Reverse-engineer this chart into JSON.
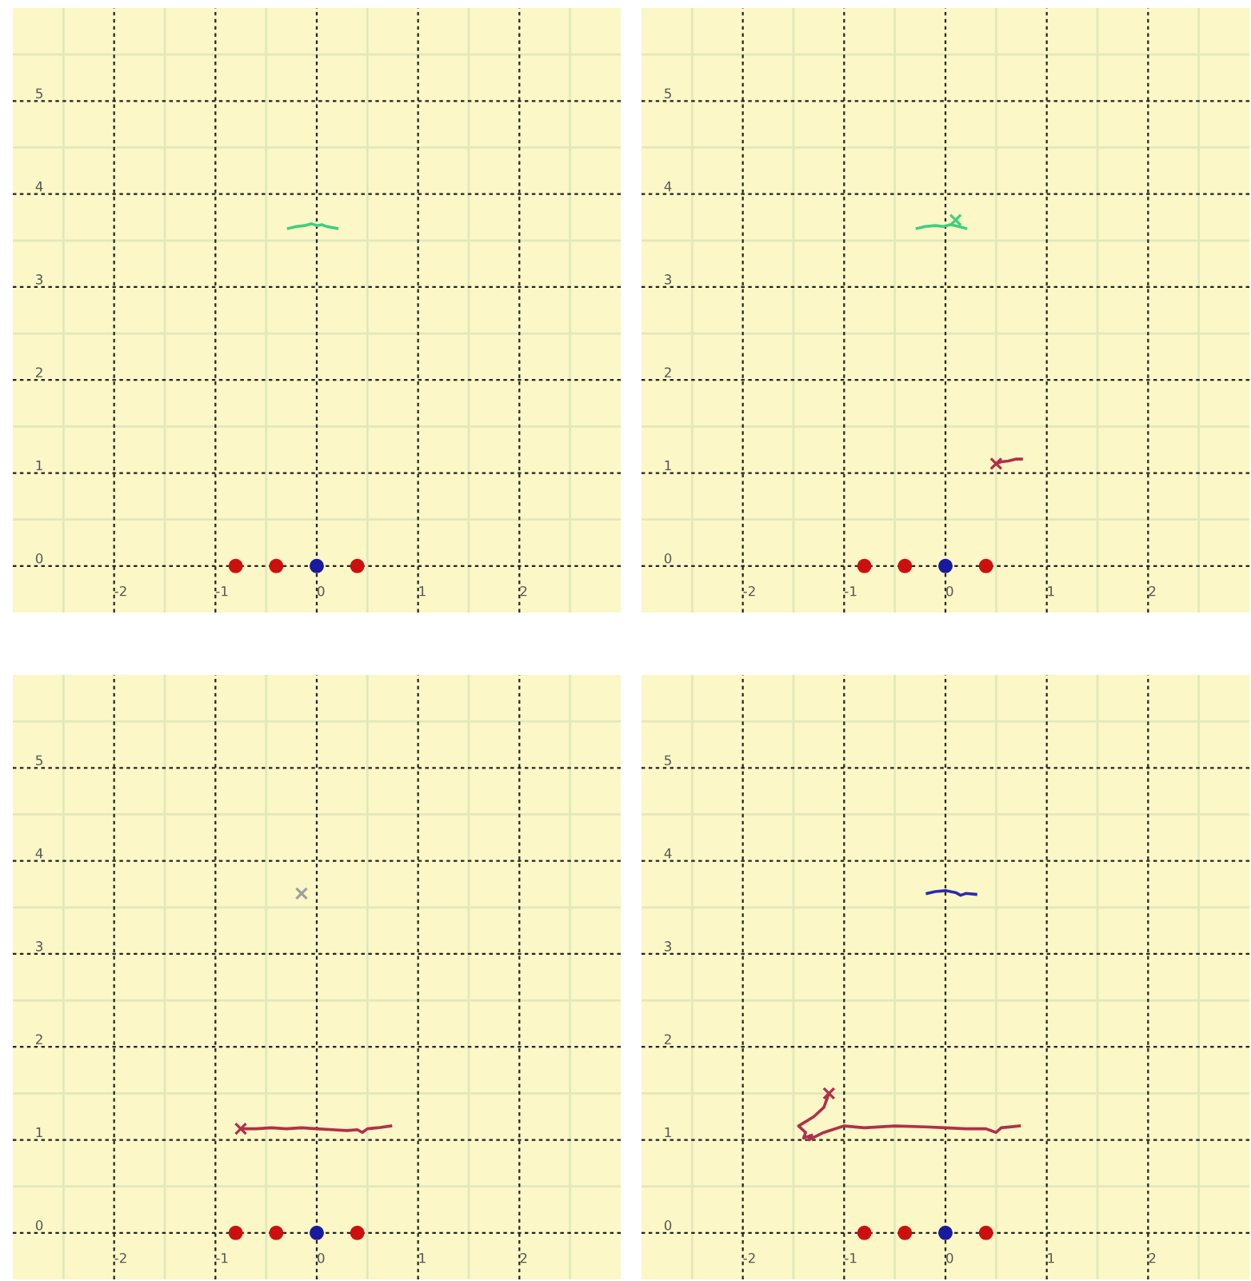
{
  "chart_data": [
    {
      "type": "scatter",
      "xlim": [
        -3,
        3
      ],
      "ylim": [
        -0.5,
        6
      ],
      "grid": true,
      "xticks": [
        {
          "value": -2.5,
          "label": null
        },
        -2,
        {
          "value": -1.5,
          "label": null
        },
        -1,
        {
          "value": -0.5,
          "label": null
        },
        0,
        {
          "value": 0.5,
          "label": null
        },
        1,
        {
          "value": 1.5,
          "label": null
        },
        2,
        {
          "value": 2.5,
          "label": null
        }
      ],
      "yticks": [
        0,
        {
          "value": 0.5,
          "label": null
        },
        1,
        {
          "value": 1.5,
          "label": null
        },
        2,
        {
          "value": 2.5,
          "label": null
        },
        3,
        {
          "value": 3.5,
          "label": null
        },
        4,
        {
          "value": 4.5,
          "label": null
        },
        5,
        {
          "value": 5.5,
          "label": null
        }
      ],
      "series": [
        {
          "type": "line",
          "color": "#3fcf7f",
          "marker": "none",
          "x": [
            -0.28,
            -0.2,
            -0.12,
            -0.05,
            0,
            0.05,
            0.1,
            0.2
          ],
          "values": [
            3.63,
            3.65,
            3.66,
            3.68,
            3.66,
            3.67,
            3.65,
            3.63
          ]
        },
        {
          "type": "scatter",
          "color": "#cc1010",
          "marker": "circle",
          "x": [
            -0.8,
            -0.4,
            0.4
          ],
          "values": [
            0,
            0,
            0
          ]
        },
        {
          "type": "scatter",
          "color": "#1a1aa0",
          "marker": "circle",
          "x": [
            0
          ],
          "values": [
            0
          ]
        }
      ]
    },
    {
      "type": "scatter",
      "xlim": [
        -3,
        3
      ],
      "ylim": [
        -0.5,
        6
      ],
      "grid": true,
      "xticks": [
        {
          "value": -2.5,
          "label": null
        },
        -2,
        {
          "value": -1.5,
          "label": null
        },
        -1,
        {
          "value": -0.5,
          "label": null
        },
        0,
        {
          "value": 0.5,
          "label": null
        },
        1,
        {
          "value": 1.5,
          "label": null
        },
        2,
        {
          "value": 2.5,
          "label": null
        }
      ],
      "yticks": [
        0,
        {
          "value": 0.5,
          "label": null
        },
        1,
        {
          "value": 1.5,
          "label": null
        },
        2,
        {
          "value": 2.5,
          "label": null
        },
        3,
        {
          "value": 3.5,
          "label": null
        },
        4,
        {
          "value": 4.5,
          "label": null
        },
        5,
        {
          "value": 5.5,
          "label": null
        }
      ],
      "series": [
        {
          "type": "line",
          "color": "#3fcf7f",
          "marker": "none",
          "x": [
            -0.28,
            -0.2,
            -0.1,
            -0.02,
            0.05,
            0.1,
            0.2
          ],
          "values": [
            3.63,
            3.65,
            3.66,
            3.65,
            3.67,
            3.66,
            3.63
          ]
        },
        {
          "type": "scatter",
          "color": "#3fcf7f",
          "marker": "cross",
          "x": [
            0.1
          ],
          "values": [
            3.72
          ]
        },
        {
          "type": "line",
          "color": "#b0304a",
          "marker": "none",
          "x": [
            0.5,
            0.55,
            0.62,
            0.7,
            0.75
          ],
          "values": [
            1.1,
            1.12,
            1.13,
            1.15,
            1.15
          ]
        },
        {
          "type": "scatter",
          "color": "#b0304a",
          "marker": "cross",
          "x": [
            0.5
          ],
          "values": [
            1.1
          ]
        },
        {
          "type": "scatter",
          "color": "#cc1010",
          "marker": "circle",
          "x": [
            -0.8,
            -0.4,
            0.4
          ],
          "values": [
            0,
            0,
            0
          ]
        },
        {
          "type": "scatter",
          "color": "#1a1aa0",
          "marker": "circle",
          "x": [
            0
          ],
          "values": [
            0
          ]
        }
      ]
    },
    {
      "type": "scatter",
      "xlim": [
        -3,
        3
      ],
      "ylim": [
        -0.5,
        6
      ],
      "grid": true,
      "xticks": [
        {
          "value": -2.5,
          "label": null
        },
        -2,
        {
          "value": -1.5,
          "label": null
        },
        -1,
        {
          "value": -0.5,
          "label": null
        },
        0,
        {
          "value": 0.5,
          "label": null
        },
        1,
        {
          "value": 1.5,
          "label": null
        },
        2,
        {
          "value": 2.5,
          "label": null
        }
      ],
      "yticks": [
        0,
        {
          "value": 0.5,
          "label": null
        },
        1,
        {
          "value": 1.5,
          "label": null
        },
        2,
        {
          "value": 2.5,
          "label": null
        },
        3,
        {
          "value": 3.5,
          "label": null
        },
        4,
        {
          "value": 4.5,
          "label": null
        },
        5,
        {
          "value": 5.5,
          "label": null
        }
      ],
      "series": [
        {
          "type": "scatter",
          "color": "#a0a0a0",
          "marker": "cross",
          "x": [
            -0.15
          ],
          "values": [
            3.65
          ]
        },
        {
          "type": "line",
          "color": "#b0304a",
          "marker": "none",
          "x": [
            -0.75,
            -0.6,
            -0.45,
            -0.3,
            -0.15,
            0,
            0.15,
            0.3,
            0.4,
            0.45,
            0.5,
            0.6,
            0.73
          ],
          "values": [
            1.12,
            1.12,
            1.13,
            1.12,
            1.13,
            1.12,
            1.11,
            1.1,
            1.11,
            1.08,
            1.12,
            1.13,
            1.15
          ]
        },
        {
          "type": "scatter",
          "color": "#b0304a",
          "marker": "cross",
          "x": [
            -0.75
          ],
          "values": [
            1.12
          ]
        },
        {
          "type": "scatter",
          "color": "#cc1010",
          "marker": "circle",
          "x": [
            -0.8,
            -0.4,
            0.4
          ],
          "values": [
            0,
            0,
            0
          ]
        },
        {
          "type": "scatter",
          "color": "#1a1aa0",
          "marker": "circle",
          "x": [
            0
          ],
          "values": [
            0
          ]
        }
      ]
    },
    {
      "type": "scatter",
      "xlim": [
        -3,
        3
      ],
      "ylim": [
        -0.5,
        6
      ],
      "grid": true,
      "xticks": [
        {
          "value": -2.5,
          "label": null
        },
        -2,
        {
          "value": -1.5,
          "label": null
        },
        -1,
        {
          "value": -0.5,
          "label": null
        },
        0,
        {
          "value": 0.5,
          "label": null
        },
        1,
        {
          "value": 1.5,
          "label": null
        },
        2,
        {
          "value": 2.5,
          "label": null
        }
      ],
      "yticks": [
        0,
        {
          "value": 0.5,
          "label": null
        },
        1,
        {
          "value": 1.5,
          "label": null
        },
        2,
        {
          "value": 2.5,
          "label": null
        },
        3,
        {
          "value": 3.5,
          "label": null
        },
        4,
        {
          "value": 4.5,
          "label": null
        },
        5,
        {
          "value": 5.5,
          "label": null
        }
      ],
      "series": [
        {
          "type": "line",
          "color": "#2a2ab0",
          "marker": "none",
          "x": [
            -0.18,
            -0.1,
            0,
            0.1,
            0.15,
            0.2,
            0.3
          ],
          "values": [
            3.65,
            3.67,
            3.68,
            3.66,
            3.63,
            3.65,
            3.64
          ]
        },
        {
          "type": "line",
          "color": "#b0304a",
          "marker": "none",
          "x": [
            -1.15,
            -1.2,
            -1.3,
            -1.45,
            -1.38,
            -1.4,
            -1.32,
            -1.35,
            -1.2,
            -1.0,
            -0.8,
            -0.5,
            -0.2,
            0,
            0.2,
            0.4,
            0.5,
            0.55,
            0.73
          ],
          "values": [
            1.5,
            1.35,
            1.25,
            1.15,
            1.08,
            1.02,
            1.05,
            1.0,
            1.08,
            1.15,
            1.13,
            1.15,
            1.14,
            1.13,
            1.12,
            1.12,
            1.08,
            1.13,
            1.15
          ]
        },
        {
          "type": "scatter",
          "color": "#b0304a",
          "marker": "cross",
          "x": [
            -1.15
          ],
          "values": [
            1.5
          ]
        },
        {
          "type": "scatter",
          "color": "#cc1010",
          "marker": "circle",
          "x": [
            -0.8,
            -0.4,
            0.4
          ],
          "values": [
            0,
            0,
            0
          ]
        },
        {
          "type": "scatter",
          "color": "#1a1aa0",
          "marker": "circle",
          "x": [
            0
          ],
          "values": [
            0
          ]
        }
      ]
    }
  ]
}
